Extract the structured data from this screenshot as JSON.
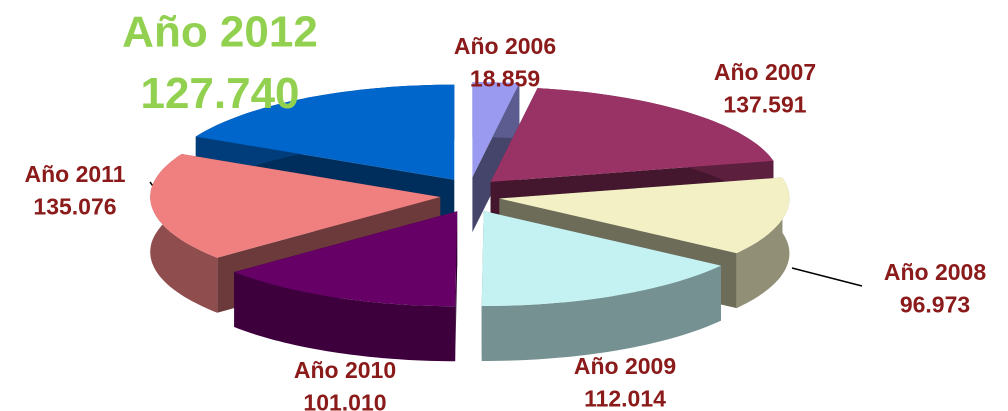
{
  "chart_data": {
    "type": "pie",
    "categories": [
      "Año 2006",
      "Año 2007",
      "Año 2008",
      "Año 2009",
      "Año 2010",
      "Año 2011",
      "Año 2012"
    ],
    "values": [
      18859,
      137591,
      96973,
      112014,
      101010,
      135076,
      127740
    ],
    "value_labels": [
      "18.859",
      "137.591",
      "96.973",
      "112.014",
      "101.010",
      "135.076",
      "127.740"
    ],
    "colors": [
      "#9a9af0",
      "#993366",
      "#f2f0c4",
      "#c4f2f2",
      "#660066",
      "#f08080",
      "#0066cc"
    ],
    "label_colors": [
      "#8b1a1a",
      "#8b1a1a",
      "#8b1a1a",
      "#8b1a1a",
      "#8b1a1a",
      "#8b1a1a",
      "#92d050"
    ]
  }
}
